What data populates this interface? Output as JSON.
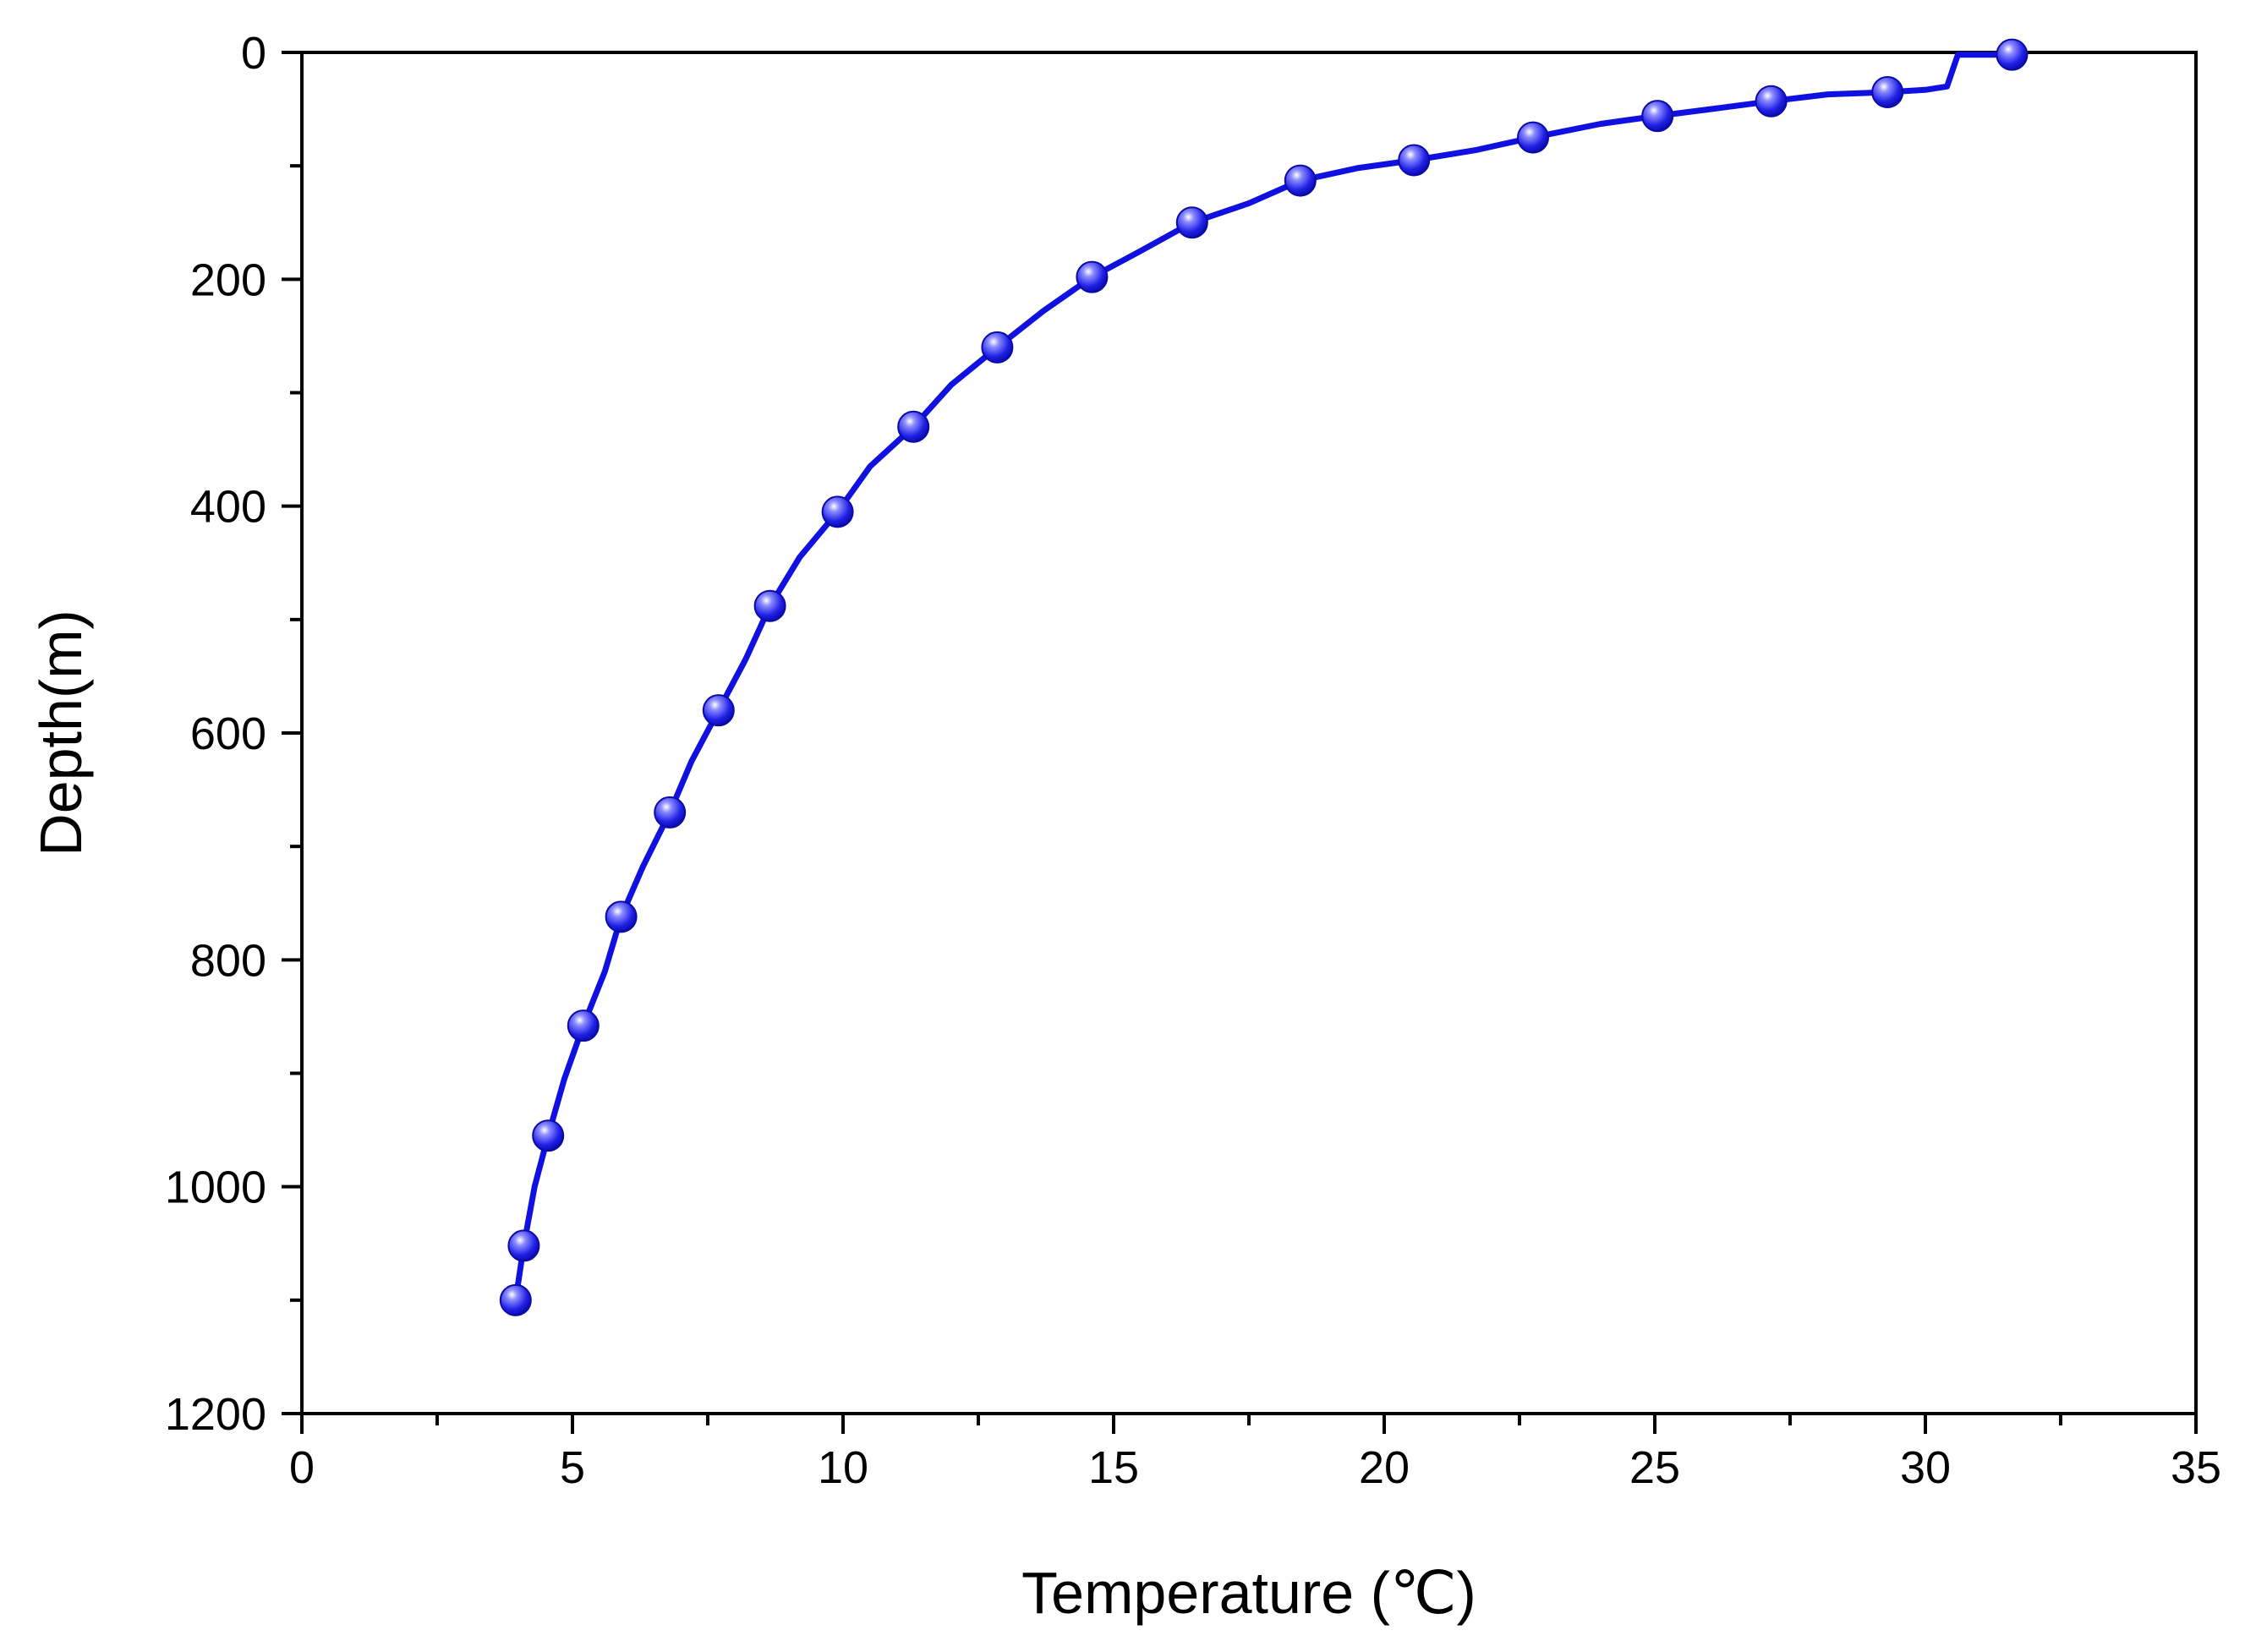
{
  "chart_data": {
    "type": "line",
    "title": "",
    "xlabel": "Temperature (℃)",
    "ylabel": "Depth(m)",
    "xlim": [
      0,
      35
    ],
    "ylim": [
      0,
      1200
    ],
    "y_inverted": true,
    "x_ticks": [
      0,
      5,
      10,
      15,
      20,
      25,
      30,
      35
    ],
    "y_ticks": [
      0,
      200,
      400,
      600,
      800,
      1000,
      1200
    ],
    "grid": false,
    "legend": "none",
    "line_color": "#1010e0",
    "marker_color": "#2a2af0",
    "series": [
      {
        "line": {
          "x": [
            3.95,
            4.1,
            4.3,
            4.55,
            4.85,
            5.2,
            5.6,
            5.9,
            6.3,
            6.8,
            7.2,
            7.7,
            8.2,
            8.65,
            9.2,
            9.9,
            10.5,
            11.3,
            12.0,
            12.85,
            13.7,
            14.6,
            15.5,
            16.45,
            17.5,
            18.45,
            19.5,
            20.55,
            21.7,
            22.75,
            24.0,
            25.05,
            26.2,
            27.15,
            28.2,
            29.3,
            30.0,
            30.4,
            30.6,
            31.6
          ],
          "y": [
            1100,
            1052,
            1000,
            955,
            905,
            858,
            810,
            762,
            718,
            670,
            625,
            580,
            535,
            488,
            445,
            405,
            365,
            330,
            293,
            260,
            228,
            198,
            175,
            150,
            133,
            113,
            102,
            95,
            86,
            75,
            63,
            56,
            49,
            43,
            37,
            35,
            33,
            30,
            2,
            2
          ]
        },
        "markers": {
          "x": [
            3.95,
            4.1,
            4.55,
            5.2,
            5.9,
            6.8,
            7.7,
            8.65,
            9.9,
            11.3,
            12.85,
            14.6,
            16.45,
            18.45,
            20.55,
            22.75,
            25.05,
            27.15,
            29.3,
            31.6
          ],
          "y": [
            1100,
            1052,
            955,
            858,
            762,
            670,
            580,
            488,
            405,
            330,
            260,
            198,
            150,
            113,
            95,
            75,
            56,
            43,
            35,
            2
          ]
        }
      }
    ]
  }
}
